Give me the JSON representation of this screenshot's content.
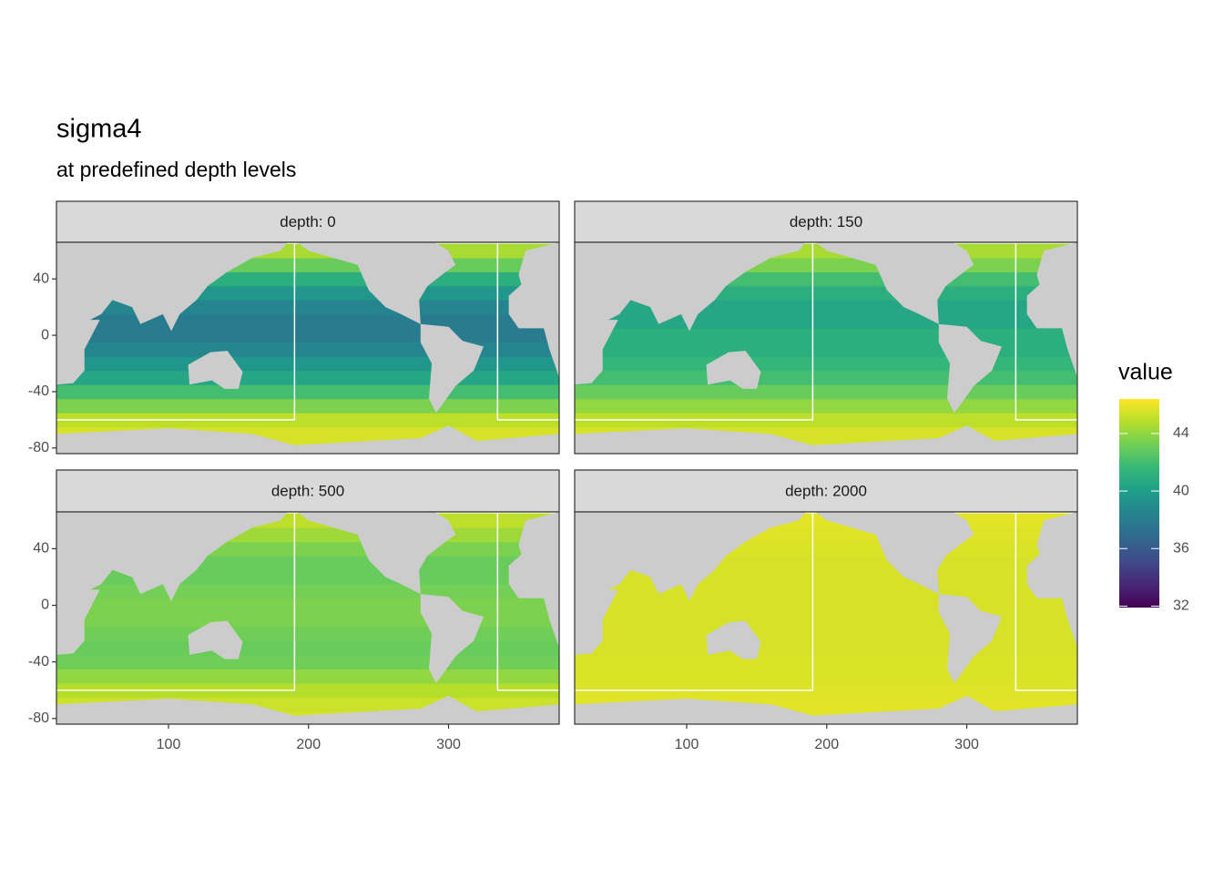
{
  "chart_data": {
    "type": "raster",
    "title": "sigma4",
    "subtitle": "at predefined depth levels",
    "legend_title": "value",
    "xlim": [
      20,
      379
    ],
    "ylim": [
      -84,
      66
    ],
    "xticks": [
      100,
      200,
      300
    ],
    "yticks": [
      40,
      0,
      -40,
      -80
    ],
    "color_limits": [
      31.9,
      46.4
    ],
    "color_ticks": [
      32,
      36,
      40,
      44
    ],
    "lat": [
      -80,
      -70,
      -60,
      -50,
      -40,
      -30,
      -20,
      -10,
      0,
      10,
      20,
      30,
      40,
      50,
      60
    ],
    "boundary": {
      "x": [
        190,
        335
      ],
      "y": -60
    },
    "facets": [
      {
        "label": "depth: 0",
        "values": [
          45.5,
          45.5,
          45,
          43.5,
          42,
          40.5,
          39.5,
          38.5,
          38,
          38,
          38.5,
          39.5,
          41,
          43,
          44.5
        ]
      },
      {
        "label": "depth: 150",
        "values": [
          45.5,
          45.5,
          45,
          44,
          43,
          42,
          41.5,
          41,
          41,
          40.5,
          40.5,
          41,
          42,
          43.5,
          44.5
        ]
      },
      {
        "label": "depth: 500",
        "values": [
          45.5,
          45.3,
          44.8,
          44,
          43.2,
          43,
          43.2,
          43.5,
          43.5,
          43.3,
          43,
          43,
          43.5,
          44.3,
          45
        ]
      },
      {
        "label": "depth: 2000",
        "values": [
          45.8,
          45.8,
          45.7,
          45.6,
          45.6,
          45.5,
          45.5,
          45.5,
          45.5,
          45.5,
          45.5,
          45.5,
          45.6,
          45.7,
          45.8
        ]
      }
    ]
  }
}
